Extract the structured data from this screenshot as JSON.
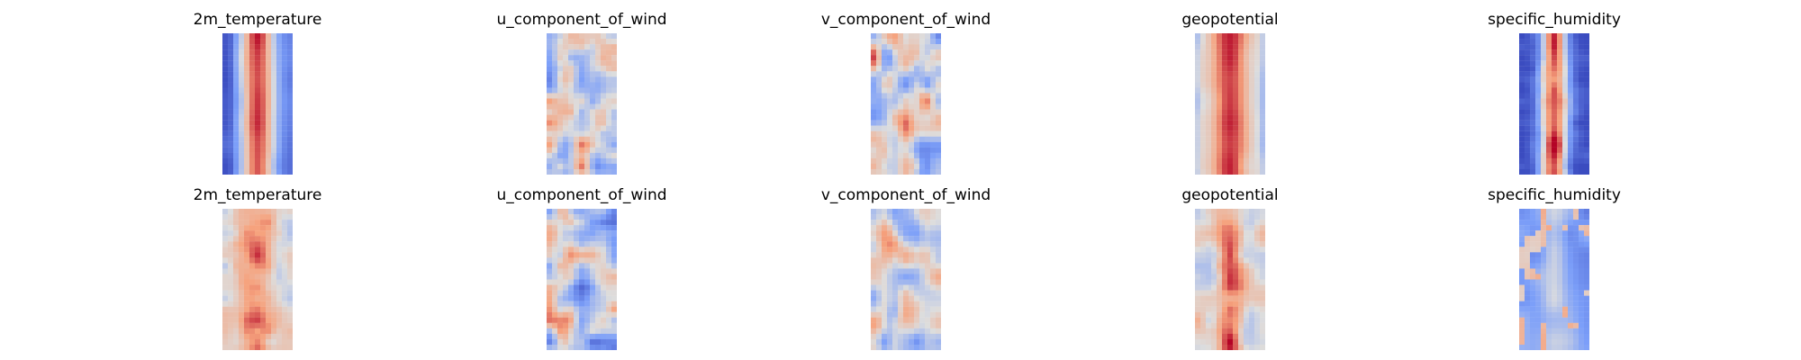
{
  "chart_data": {
    "type": "heatmap",
    "colormap": "coolwarm",
    "grid": false,
    "axes_visible": false,
    "rows": [
      {
        "panels": [
          {
            "title": "2m_temperature",
            "pattern": "temperature"
          },
          {
            "title": "u_component_of_wind",
            "pattern": "wind_u"
          },
          {
            "title": "v_component_of_wind",
            "pattern": "wind_v"
          },
          {
            "title": "geopotential",
            "pattern": "geopotential"
          },
          {
            "title": "specific_humidity",
            "pattern": "humidity"
          }
        ]
      },
      {
        "panels": [
          {
            "title": "2m_temperature",
            "pattern": "temperature_noisy"
          },
          {
            "title": "u_component_of_wind",
            "pattern": "wind_u_cool"
          },
          {
            "title": "v_component_of_wind",
            "pattern": "wind_v_neutral"
          },
          {
            "title": "geopotential",
            "pattern": "geopotential_noisy"
          },
          {
            "title": "specific_humidity",
            "pattern": "humidity_faint"
          }
        ]
      }
    ]
  }
}
